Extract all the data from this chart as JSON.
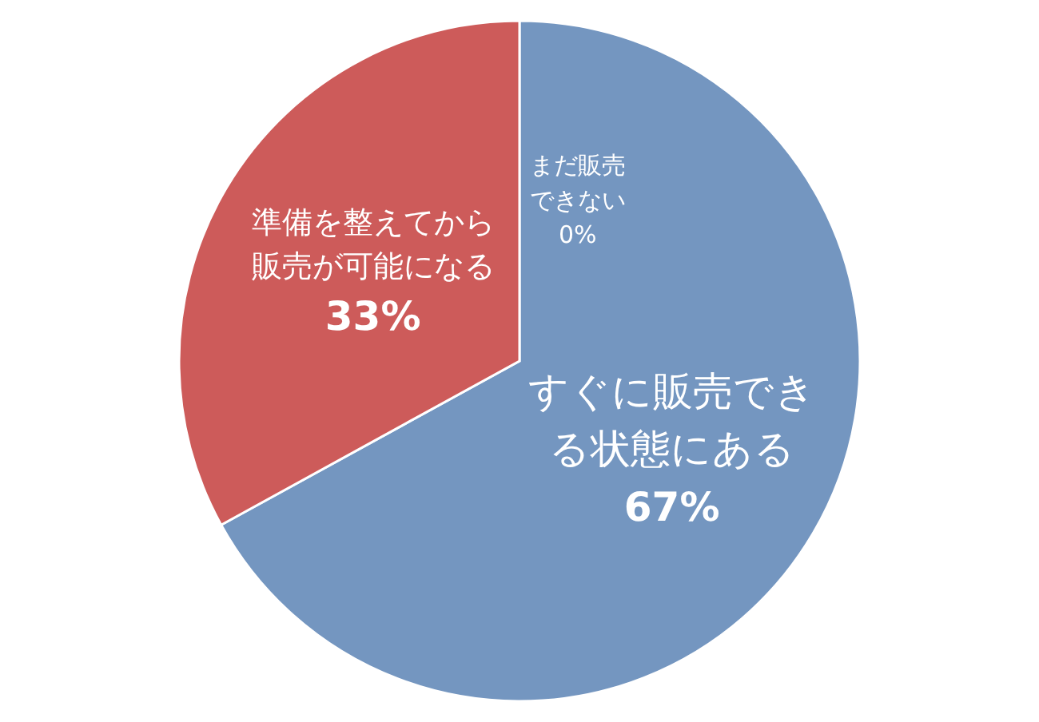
{
  "chart_data": {
    "type": "pie",
    "categories": [
      "まだ販売できない",
      "すぐに販売できる状態にある",
      "準備を整えてから販売が可能になる"
    ],
    "values": [
      0,
      67,
      33
    ],
    "colors": [
      "#7496c0",
      "#7496c0",
      "#cd5b5a"
    ],
    "value_labels": [
      "0%",
      "67%",
      "33%"
    ]
  }
}
